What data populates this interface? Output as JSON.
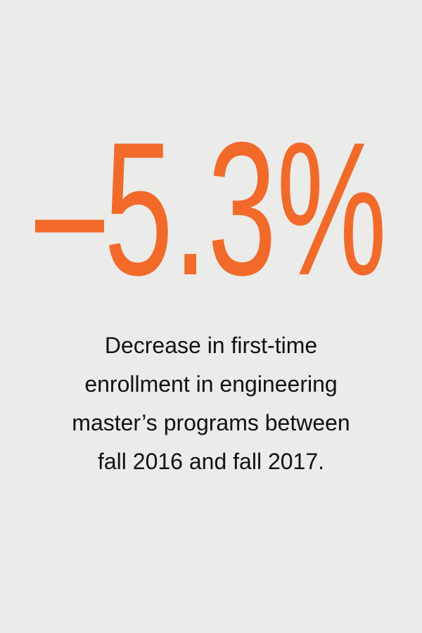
{
  "stat": "–5.3%",
  "description": [
    "Decrease in first-time",
    "enrollment in engineering",
    "master’s programs between",
    "fall 2016 and fall 2017."
  ]
}
